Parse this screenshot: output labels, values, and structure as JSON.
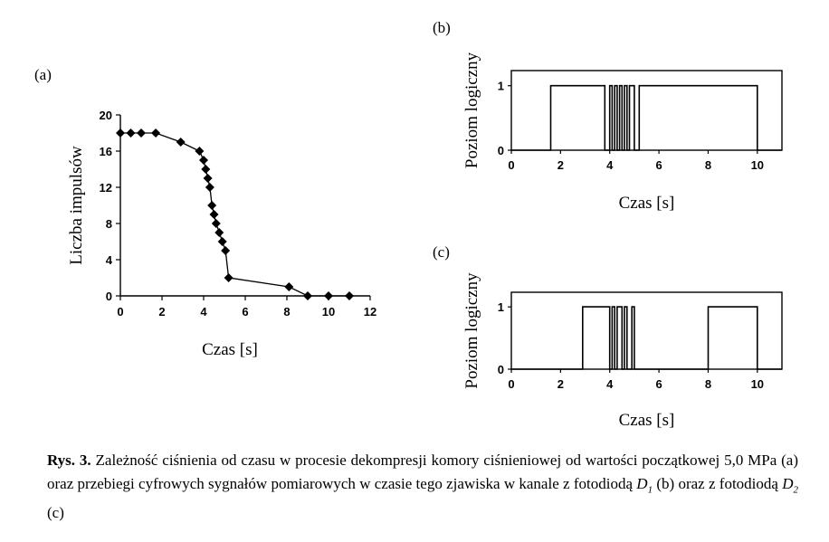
{
  "chart_data": [
    {
      "panel_label": "(a)",
      "type": "line",
      "xlabel": "Czas [s]",
      "ylabel": "Liczba impulsów",
      "xlim": [
        0,
        12
      ],
      "ylim": [
        0,
        20
      ],
      "xticks": [
        "0",
        "2",
        "4",
        "6",
        "8",
        "10",
        "12"
      ],
      "yticks": [
        "0",
        "4",
        "8",
        "12",
        "16",
        "20"
      ],
      "grid": false,
      "markers": "diamond",
      "x": [
        0,
        0.5,
        1.0,
        1.7,
        2.9,
        3.8,
        4.0,
        4.1,
        4.2,
        4.3,
        4.4,
        4.5,
        4.6,
        4.75,
        4.9,
        5.05,
        5.2,
        8.1,
        9.0,
        10.0,
        11.0
      ],
      "y": [
        18,
        18,
        18,
        18,
        17,
        16,
        15,
        14,
        13,
        12,
        10,
        9,
        8,
        7,
        6,
        5,
        2,
        1,
        0,
        0,
        0
      ]
    },
    {
      "panel_label": "(b)",
      "type": "line",
      "step": true,
      "xlabel": "Czas [s]",
      "ylabel": "Poziom logiczny",
      "xlim": [
        0,
        11
      ],
      "ylim": [
        0,
        1
      ],
      "xticks": [
        "0",
        "2",
        "4",
        "6",
        "8",
        "10"
      ],
      "yticks": [
        "0",
        "1"
      ],
      "grid": false,
      "x": [
        0,
        1.6,
        1.6,
        3.8,
        3.8,
        4.0,
        4.0,
        4.1,
        4.1,
        4.2,
        4.2,
        4.3,
        4.3,
        4.4,
        4.4,
        4.5,
        4.5,
        4.6,
        4.6,
        4.7,
        4.7,
        4.8,
        4.8,
        5.0,
        5.0,
        5.2,
        5.2,
        10.0,
        10.0,
        11.0
      ],
      "y": [
        0,
        0,
        1,
        1,
        0,
        0,
        1,
        1,
        0,
        0,
        1,
        1,
        0,
        0,
        1,
        1,
        0,
        0,
        1,
        1,
        0,
        0,
        1,
        1,
        0,
        0,
        1,
        1,
        0,
        0
      ]
    },
    {
      "panel_label": "(c)",
      "type": "line",
      "step": true,
      "xlabel": "Czas [s]",
      "ylabel": "Poziom logiczny",
      "xlim": [
        0,
        11
      ],
      "ylim": [
        0,
        1
      ],
      "xticks": [
        "0",
        "2",
        "4",
        "6",
        "8",
        "10"
      ],
      "yticks": [
        "0",
        "1"
      ],
      "grid": false,
      "x": [
        0,
        2.9,
        2.9,
        4.0,
        4.0,
        4.1,
        4.1,
        4.2,
        4.2,
        4.3,
        4.3,
        4.5,
        4.5,
        4.6,
        4.6,
        4.7,
        4.7,
        4.9,
        4.9,
        5.0,
        5.0,
        5.1,
        5.1,
        8.0,
        8.0,
        10.0,
        10.0,
        11.0
      ],
      "y": [
        0,
        0,
        1,
        1,
        0,
        0,
        1,
        1,
        0,
        0,
        1,
        1,
        0,
        0,
        1,
        1,
        0,
        0,
        1,
        1,
        0,
        0,
        0,
        0,
        1,
        1,
        0,
        0
      ]
    }
  ],
  "caption": {
    "prefix": "Rys. 3.",
    "text": "Zależność ciśnienia od czasu w procesie dekompresji komory ciśnieniowej od wartości początkowej 5,0 MPa (a) oraz przebiegi cyfrowych sygnałów pomiarowych w czasie tego zjawiska w kanale z fotodiodą",
    "d1_var": "D",
    "d1_sub": "1",
    "middle": "(b) oraz z fotodiodą",
    "d2_var": "D",
    "d2_sub": "2",
    "suffix": "(c)"
  }
}
